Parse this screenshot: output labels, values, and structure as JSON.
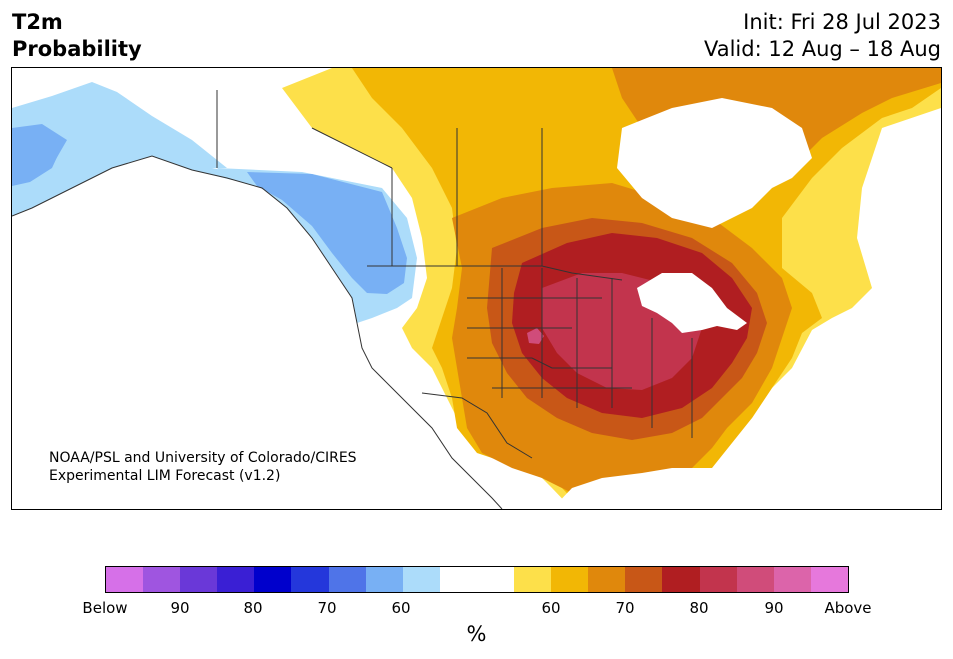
{
  "title": {
    "variable": "T2m",
    "type": "Probability",
    "init": "Init: Fri 28 Jul 2023",
    "valid": "Valid: 12 Aug – 18 Aug"
  },
  "credit": {
    "line1": "NOAA/PSL and University of Colorado/CIRES",
    "line2": "Experimental LIM Forecast (v1.2)"
  },
  "colorbar": {
    "unit": "%",
    "colors": [
      "#d670e8",
      "#9f55e0",
      "#6a38d8",
      "#3a1fd4",
      "#0000cc",
      "#2437db",
      "#4f74e8",
      "#78b0f4",
      "#acdcfa",
      "#ffffff",
      "#ffffff",
      "#fde04a",
      "#f2b705",
      "#e0880c",
      "#c85717",
      "#b01e21",
      "#c2344d",
      "#d04c7a",
      "#dc64aa",
      "#e678dc"
    ],
    "ticks": [
      {
        "label": "Below"
      },
      {
        "label": "90"
      },
      {
        "label": "80"
      },
      {
        "label": "70"
      },
      {
        "label": "60"
      },
      {
        "label": "60"
      },
      {
        "label": "70"
      },
      {
        "label": "80"
      },
      {
        "label": "90"
      },
      {
        "label": "Above"
      }
    ]
  },
  "map": {
    "colors": {
      "ocean": "#ffffff",
      "land": "#ffffff",
      "cool_60": "#acdcfa",
      "cool_70": "#78b0f4",
      "warm_60": "#fde04a",
      "warm_70": "#f2b705",
      "warm_80": "#e0880c",
      "warm_90": "#c85717",
      "warm_95": "#b01e21",
      "warm_99": "#c2344d",
      "warm_100": "#d04c7a",
      "border": "#333333"
    }
  }
}
